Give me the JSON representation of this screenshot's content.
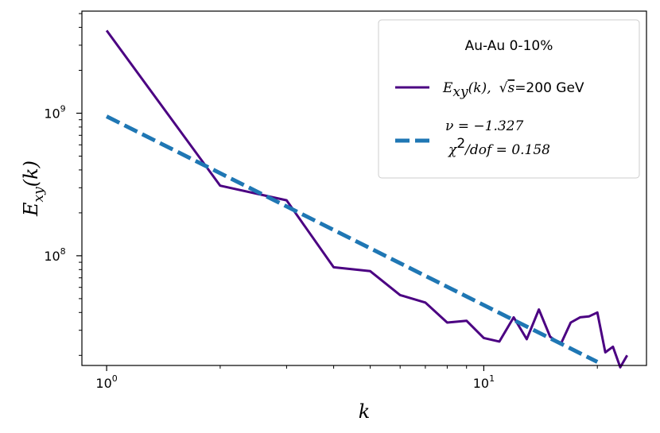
{
  "chart_data": {
    "type": "line",
    "xscale": "log",
    "yscale": "log",
    "xlim": [
      0.86,
      27.0
    ],
    "ylim": [
      17000000,
      5200000000
    ],
    "xlabel_base": "E",
    "xlabel": "k",
    "ylabel_base": "E",
    "ylabel_sub": "xy",
    "ylabel_arg": "(k)",
    "x_ticks": [
      {
        "value": 1,
        "base": "10",
        "exp": "0"
      },
      {
        "value": 10,
        "base": "10",
        "exp": "1"
      }
    ],
    "y_ticks": [
      {
        "value": 100000000,
        "base": "10",
        "exp": "8"
      },
      {
        "value": 1000000000,
        "base": "10",
        "exp": "9"
      }
    ],
    "legend": {
      "title": "Au-Au  0-10%",
      "entries": [
        {
          "series": 0,
          "lines": [
            "E_xy(k),  √s=200 GeV"
          ],
          "parts": {
            "name": "E",
            "sub": "xy",
            "arg": "(k),",
            "sqrt": "√",
            "s": "s",
            "rest": "=200 GeV"
          }
        },
        {
          "series": 1,
          "lines": [
            "ν = −1.327",
            "χ²/dof = 0.158"
          ],
          "parts": {
            "nu": "ν = −1.327",
            "chi": "χ",
            "chi_exp": "2",
            "dof": "/dof = 0.158"
          }
        }
      ]
    },
    "series": [
      {
        "style": "solid",
        "color": "#4b0082",
        "x": [
          1,
          2,
          3,
          4,
          5,
          6,
          7,
          8,
          9,
          10,
          11,
          12,
          13,
          14,
          15,
          16,
          17,
          18,
          19,
          20,
          21,
          22,
          23,
          24
        ],
        "y": [
          3800000000,
          310000000,
          245000000,
          83000000,
          78000000,
          53000000,
          47000000,
          34000000,
          35000000,
          26500000,
          25000000,
          37000000,
          26000000,
          42000000,
          27000000,
          24000000,
          34000000,
          37000000,
          37500000,
          40000000,
          21000000,
          23000000,
          16500000,
          20000000
        ]
      },
      {
        "style": "dashed",
        "color": "#1f77b4",
        "x": [
          1,
          20
        ],
        "y": [
          950000000,
          18000000
        ]
      }
    ]
  }
}
